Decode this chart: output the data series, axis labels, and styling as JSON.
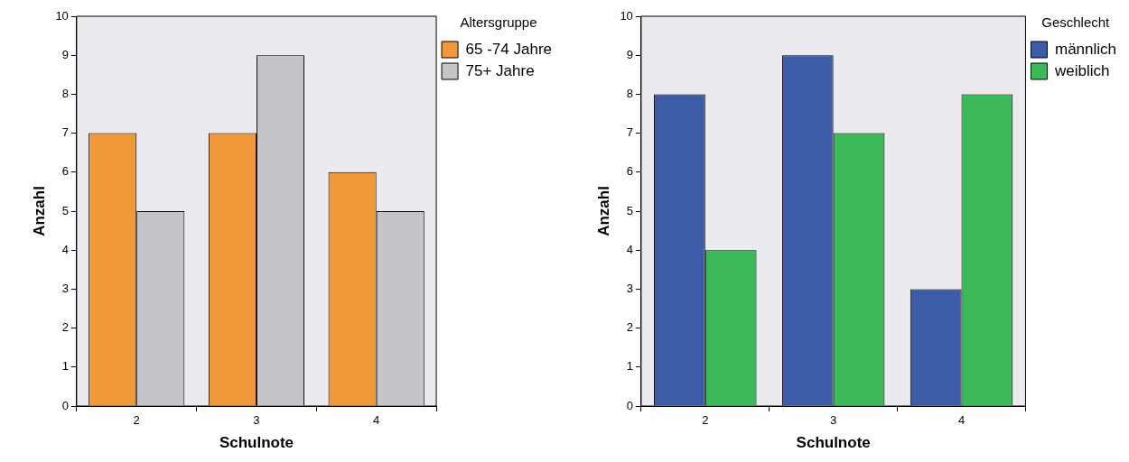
{
  "chart_data": [
    {
      "type": "bar",
      "xlabel": "Schulnote",
      "ylabel": "Anzahl",
      "legend_title": "Altersgruppe",
      "legend": "top right",
      "categories": [
        "2",
        "3",
        "4"
      ],
      "ylim": [
        0,
        10
      ],
      "yticks": [
        0,
        1,
        2,
        3,
        4,
        5,
        6,
        7,
        8,
        9,
        10
      ],
      "series": [
        {
          "name": "65 -74 Jahre",
          "color": "#f0993b",
          "values": [
            7,
            7,
            6
          ]
        },
        {
          "name": "75+ Jahre",
          "color": "#c4c5c9",
          "values": [
            5,
            9,
            5
          ]
        }
      ]
    },
    {
      "type": "bar",
      "xlabel": "Schulnote",
      "ylabel": "Anzahl",
      "legend_title": "Geschlecht",
      "legend": "top right",
      "categories": [
        "2",
        "3",
        "4"
      ],
      "ylim": [
        0,
        10
      ],
      "yticks": [
        0,
        1,
        2,
        3,
        4,
        5,
        6,
        7,
        8,
        9,
        10
      ],
      "series": [
        {
          "name": "männlich",
          "color": "#3c5ca8",
          "values": [
            8,
            9,
            3
          ]
        },
        {
          "name": "weiblich",
          "color": "#3cb95a",
          "values": [
            4,
            7,
            8
          ]
        }
      ]
    }
  ]
}
